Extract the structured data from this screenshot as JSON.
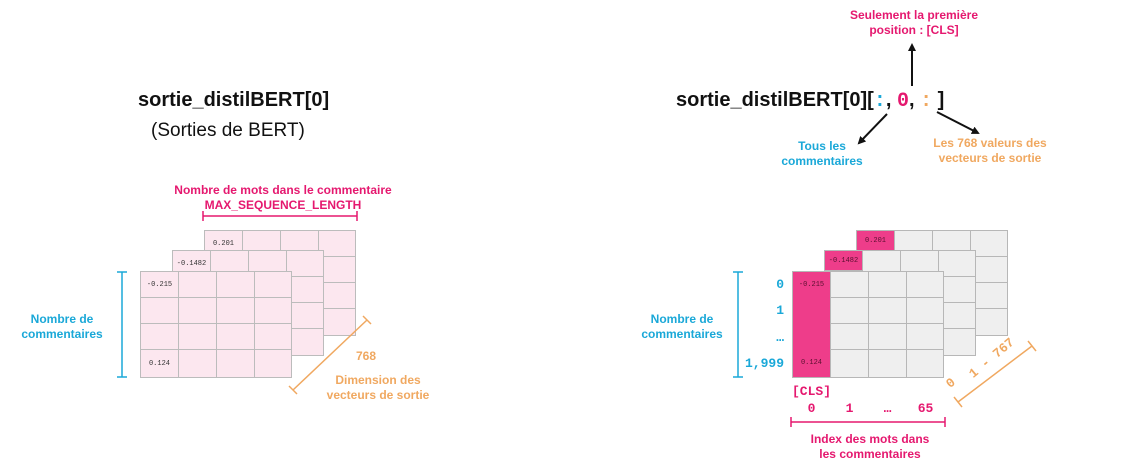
{
  "left_panel": {
    "title": "sortie_distilBERT[0]",
    "subtitle": "(Sorties de BERT)",
    "top_label_line1": "Nombre de mots dans le commentaire",
    "top_label_line2": "MAX_SEQUENCE_LENGTH",
    "left_label_line1": "Nombre de",
    "left_label_line2": "commentaires",
    "depth_number": "768",
    "depth_label_line1": "Dimension des",
    "depth_label_line2": "vecteurs de sortie",
    "cell_values": {
      "back_top_left": "0.201",
      "middle_top_left": "-0.1482",
      "front_top_left": "-0.215",
      "front_bottom_left": "0.124"
    }
  },
  "right_panel": {
    "title_prefix": "sortie_distilBERT[0][",
    "sel_first": ":",
    "comma1": ",",
    "sel_middle": "0",
    "comma2": ",",
    "sel_last": ":",
    "title_suffix": "]",
    "top_note_line1": "Seulement la première",
    "top_note_line2": "position : [CLS]",
    "left_note_line1": "Tous les",
    "left_note_line2": "commentaires",
    "right_note_line1": "Les 768 valeurs des",
    "right_note_line2": "vecteurs de sortie",
    "left_label_line1": "Nombre de",
    "left_label_line2": "commentaires",
    "row_indices": [
      "0",
      "1",
      "…",
      "1,999"
    ],
    "cls_label": "[CLS]",
    "col_indices": [
      "0",
      "1",
      "…",
      "65"
    ],
    "depth_start": "0",
    "depth_range": "1 - 767",
    "bottom_label_line1": "Index des mots dans",
    "bottom_label_line2": "les commentaires",
    "cell_values": {
      "back_top_left": "0.201",
      "middle_top_left": "-0.1482",
      "front_top_left": "-0.215",
      "front_bottom_left": "0.124"
    }
  },
  "colors": {
    "pink": "#e5186f",
    "blue": "#1aa8d8",
    "orange": "#f0a860",
    "light_pink_cell": "#fce7ef",
    "hot_pink_cell": "#ee3d8a",
    "gray_cell": "#efefef"
  }
}
